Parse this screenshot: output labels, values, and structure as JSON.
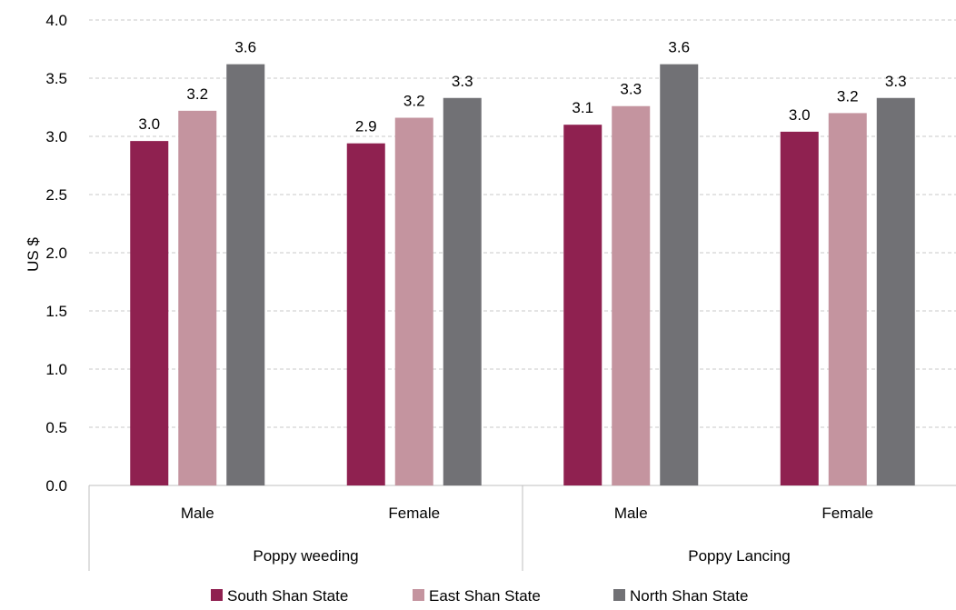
{
  "chart_data": {
    "type": "bar",
    "ylabel": "US $",
    "ylim": [
      0,
      4.0
    ],
    "yticks": [
      "0.0",
      "0.5",
      "1.0",
      "1.5",
      "2.0",
      "2.5",
      "3.0",
      "3.5",
      "4.0"
    ],
    "grid": true,
    "legend_position": "bottom",
    "groups": [
      "Poppy weeding",
      "Poppy Lancing"
    ],
    "categories": [
      "Male",
      "Female",
      "Male",
      "Female"
    ],
    "category_group": [
      0,
      0,
      1,
      1
    ],
    "series": [
      {
        "name": "South Shan State",
        "color": "#8f2150",
        "values": [
          2.96,
          2.94,
          3.1,
          3.04
        ],
        "labels": [
          "3.0",
          "2.9",
          "3.1",
          "3.0"
        ]
      },
      {
        "name": "East Shan State",
        "color": "#c4949f",
        "values": [
          3.22,
          3.16,
          3.26,
          3.2
        ],
        "labels": [
          "3.2",
          "3.2",
          "3.3",
          "3.2"
        ]
      },
      {
        "name": "North Shan State",
        "color": "#717175",
        "values": [
          3.62,
          3.33,
          3.62,
          3.33
        ],
        "labels": [
          "3.6",
          "3.3",
          "3.6",
          "3.3"
        ]
      }
    ]
  }
}
